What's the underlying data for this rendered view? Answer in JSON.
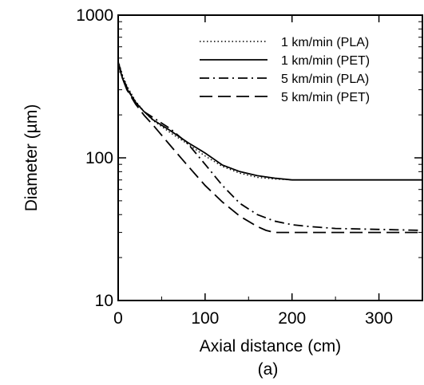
{
  "chart_data": {
    "type": "line",
    "xlabel": "Axial distance (cm)",
    "ylabel": "Diameter (µm)",
    "caption": "(a)",
    "xlim": [
      0,
      350
    ],
    "ylim": [
      10,
      1000
    ],
    "yscale": "log",
    "xticks": [
      0,
      100,
      200,
      300
    ],
    "yticks": [
      10,
      100,
      1000
    ],
    "grid": false,
    "legend_position": "top-right",
    "series": [
      {
        "name": "1 km/min (PLA)",
        "style": "dotted",
        "x": [
          0,
          5,
          10,
          20,
          30,
          40,
          60,
          80,
          100,
          120,
          140,
          160,
          180,
          200,
          220,
          250,
          300,
          350
        ],
        "y": [
          480,
          380,
          320,
          250,
          210,
          183,
          150,
          125,
          103,
          87,
          78,
          73,
          71,
          70,
          70,
          70,
          70,
          70
        ]
      },
      {
        "name": "1 km/min (PET)",
        "style": "solid",
        "x": [
          0,
          5,
          10,
          20,
          30,
          40,
          60,
          80,
          100,
          120,
          140,
          160,
          180,
          200,
          220,
          250,
          300,
          350
        ],
        "y": [
          460,
          360,
          305,
          245,
          210,
          185,
          155,
          128,
          108,
          89,
          80,
          75,
          72,
          70,
          70,
          70,
          70,
          70
        ]
      },
      {
        "name": "5 km/min (PLA)",
        "style": "dashdot",
        "x": [
          0,
          5,
          10,
          20,
          30,
          40,
          60,
          80,
          100,
          120,
          140,
          160,
          180,
          200,
          220,
          250,
          300,
          350
        ],
        "y": [
          470,
          370,
          312,
          245,
          210,
          192,
          160,
          126,
          90,
          64,
          48,
          40,
          36,
          34,
          33,
          32,
          31.5,
          31
        ]
      },
      {
        "name": "5 km/min (PET)",
        "style": "dashed",
        "x": [
          0,
          5,
          10,
          20,
          30,
          40,
          60,
          80,
          100,
          120,
          140,
          160,
          170,
          180,
          200,
          250,
          300,
          350
        ],
        "y": [
          460,
          360,
          300,
          238,
          198,
          170,
          122,
          88,
          64,
          49,
          39,
          33,
          31,
          30,
          30,
          30,
          30,
          30
        ]
      }
    ]
  }
}
